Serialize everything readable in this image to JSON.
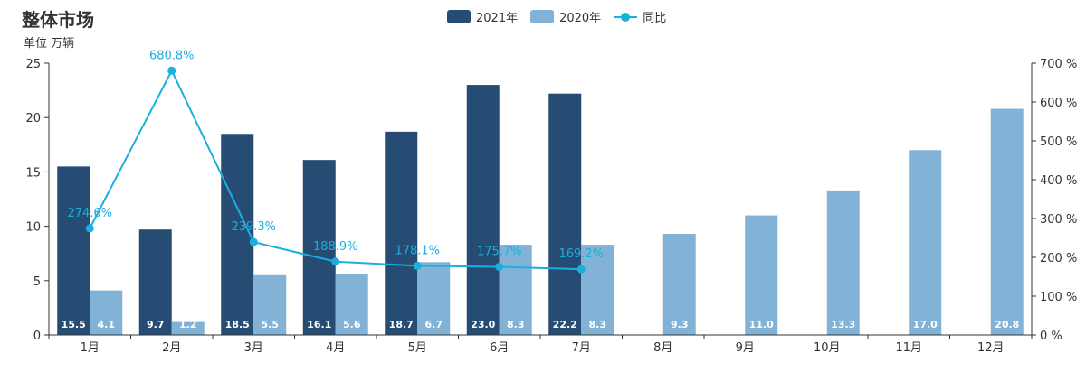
{
  "title": "整体市场",
  "unit": "单位 万辆",
  "legend": [
    {
      "name": "2021年",
      "type": "bar",
      "color": "#264c74"
    },
    {
      "name": "2020年",
      "type": "bar",
      "color": "#82b3d6"
    },
    {
      "name": "同比",
      "type": "line",
      "color": "#1aafdf"
    }
  ],
  "chart_data": {
    "type": "bar",
    "title": "整体市场",
    "ylabel": "单位 万辆",
    "categories": [
      "1月",
      "2月",
      "3月",
      "4月",
      "5月",
      "6月",
      "7月",
      "8月",
      "9月",
      "10月",
      "11月",
      "12月"
    ],
    "series": [
      {
        "name": "2021年",
        "type": "bar",
        "color": "#264c74",
        "values": [
          15.5,
          9.7,
          18.5,
          16.1,
          18.7,
          23.0,
          22.2,
          null,
          null,
          null,
          null,
          null
        ],
        "labels": [
          "15.5",
          "9.7",
          "18.5",
          "16.1",
          "18.7",
          "23.0",
          "22.2",
          "",
          "",
          "",
          "",
          ""
        ]
      },
      {
        "name": "2020年",
        "type": "bar",
        "color": "#82b3d6",
        "values": [
          4.1,
          1.2,
          5.5,
          5.6,
          6.7,
          8.3,
          8.3,
          9.3,
          11.0,
          13.3,
          17.0,
          20.8
        ],
        "labels": [
          "4.1",
          "1.2",
          "5.5",
          "5.6",
          "6.7",
          "8.3",
          "8.3",
          "9.3",
          "11.0",
          "13.3",
          "17.0",
          "20.8"
        ]
      },
      {
        "name": "同比",
        "type": "line",
        "color": "#1aafdf",
        "axis": "right",
        "values": [
          274.6,
          680.8,
          239.3,
          188.9,
          178.1,
          175.7,
          169.2,
          null,
          null,
          null,
          null,
          null
        ],
        "labels": [
          "274.6%",
          "680.8%",
          "239.3%",
          "188.9%",
          "178.1%",
          "175.7%",
          "169.2%",
          "",
          "",
          "",
          "",
          ""
        ]
      }
    ],
    "y_left": {
      "min": 0,
      "max": 25,
      "ticks": [
        0,
        5,
        10,
        15,
        20,
        25
      ],
      "tick_labels": [
        "0",
        "5",
        "10",
        "15",
        "20",
        "25"
      ]
    },
    "y_right": {
      "min": 0,
      "max": 700,
      "ticks": [
        0,
        100,
        200,
        300,
        400,
        500,
        600,
        700
      ],
      "tick_labels": [
        "0 %",
        "100 %",
        "200 %",
        "300 %",
        "400 %",
        "500 %",
        "600 %",
        "700 %"
      ]
    },
    "grid": false,
    "legend_position": "top-center"
  }
}
